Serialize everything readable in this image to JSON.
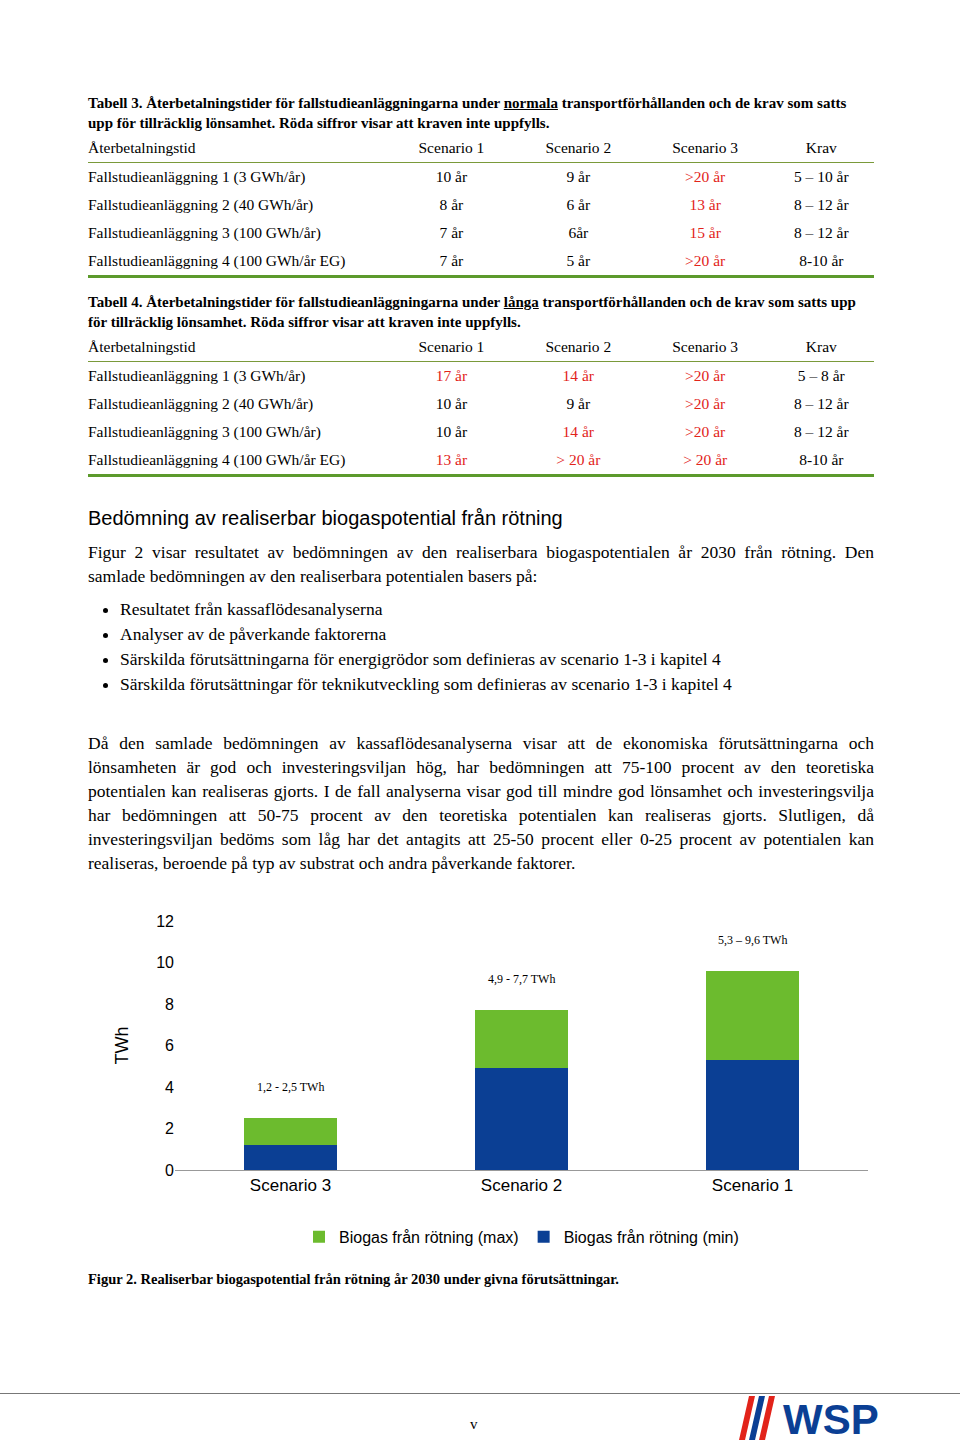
{
  "tables": [
    {
      "caption": [
        {
          "text": "Tabell 3. Återbetalningstider för fallstudieanläggningarna under "
        },
        {
          "text": "normala",
          "underline": true
        },
        {
          "text": " transportförhållanden och de krav som satts upp för tillräcklig lönsamhet. Röda siffror visar att kraven inte uppfylls."
        }
      ],
      "header": [
        "Återbetalningstid",
        "Scenario 1",
        "Scenario 2",
        "Scenario 3",
        "Krav"
      ],
      "rows": [
        [
          "Fallstudieanläggning 1 (3 GWh/år)",
          "10 år",
          "9 år",
          {
            "text": ">20 år",
            "color": "red"
          },
          "5 – 10 år"
        ],
        [
          "Fallstudieanläggning 2 (40 GWh/år)",
          "8 år",
          "6 år",
          {
            "text": "13 år",
            "color": "red"
          },
          "8 – 12 år"
        ],
        [
          "Fallstudieanläggning 3 (100 GWh/år)",
          "7 år",
          "6år",
          {
            "text": "15 år",
            "color": "red"
          },
          "8 – 12 år"
        ],
        [
          "Fallstudieanläggning 4 (100 GWh/år EG)",
          "7 år",
          "5 år",
          {
            "text": ">20 år",
            "color": "red"
          },
          "8-10 år"
        ]
      ]
    },
    {
      "caption": [
        {
          "text": "Tabell 4. Återbetalningstider för fallstudieanläggningarna under "
        },
        {
          "text": "långa",
          "underline": true
        },
        {
          "text": " transportförhållanden och de krav som satts upp för tillräcklig lönsamhet. Röda siffror visar att kraven inte uppfylls."
        }
      ],
      "header": [
        "Återbetalningstid",
        "Scenario 1",
        "Scenario 2",
        "Scenario 3",
        "Krav"
      ],
      "rows": [
        [
          "Fallstudieanläggning 1 (3 GWh/år)",
          {
            "text": "17 år",
            "color": "red"
          },
          {
            "text": "14 år",
            "color": "red"
          },
          {
            "text": ">20 år",
            "color": "red"
          },
          "5 – 8 år"
        ],
        [
          "Fallstudieanläggning 2 (40 GWh/år)",
          "10 år",
          "9 år",
          {
            "text": ">20 år",
            "color": "red"
          },
          "8 – 12 år"
        ],
        [
          "Fallstudieanläggning 3 (100 GWh/år)",
          "10 år",
          {
            "text": "14 år",
            "color": "red"
          },
          {
            "text": ">20 år",
            "color": "red"
          },
          "8 – 12 år"
        ],
        [
          "Fallstudieanläggning 4 (100 GWh/år EG)",
          {
            "text": "13 år",
            "color": "red"
          },
          {
            "text": "> 20 år",
            "color": "red"
          },
          {
            "text": "> 20 år",
            "color": "red"
          },
          "8-10 år"
        ]
      ]
    }
  ],
  "heading": "Bedömning av realiserbar biogaspotential från rötning",
  "paragraph1": "Figur 2 visar resultatet av bedömningen av den realiserbara biogaspotentialen år 2030 från rötning. Den samlade bedömningen av den realiserbara potentialen basers på:",
  "bullets": [
    "Resultatet från kassaflödesanalyserna",
    "Analyser av de påverkande faktorerna",
    "Särskilda förutsättningarna för energigrödor som definieras av scenario 1-3 i kapitel 4",
    "Särskilda förutsättningar för teknikutveckling som definieras av scenario 1-3 i kapitel 4"
  ],
  "paragraph2": "Då den samlade bedömningen av kassaflödesanalyserna visar att de ekonomiska förutsättningarna och lönsamheten är god och investeringsviljan hög, har bedömningen att 75-100 procent av den teoretiska potentialen kan realiseras gjorts. I de fall analyserna visar god till mindre god lönsamhet och investeringsvilja har bedömningen att 50-75 procent av den teoretiska potentialen kan realiseras gjorts. Slutligen, då investeringsviljan bedöms som låg har det antagits att 25-50 procent eller 0-25 procent av potentialen kan realiseras, beroende på typ av substrat och andra påverkande faktorer.",
  "chart_data": {
    "type": "bar",
    "stacked": true,
    "categories": [
      "Scenario 3",
      "Scenario 2",
      "Scenario 1"
    ],
    "series": [
      {
        "name": "Biogas från rötning (min)",
        "color": "#0b3f94",
        "values": [
          1.2,
          4.9,
          5.3
        ]
      },
      {
        "name": "Biogas från rötning (max)",
        "color": "#6cbb2e",
        "values": [
          1.3,
          2.8,
          4.3
        ]
      }
    ],
    "y_label": "TWh",
    "ylim": [
      0,
      12
    ],
    "yticks": [
      0,
      2,
      4,
      6,
      8,
      10,
      12
    ],
    "grid": false,
    "legend": "bottom",
    "annotations": [
      {
        "category": "Scenario 3",
        "text": "1,2 - 2,5 TWh"
      },
      {
        "category": "Scenario 2",
        "text": "4,9 - 7,7 TWh"
      },
      {
        "category": "Scenario 1",
        "text": "5,3 – 9,6 TWh"
      }
    ]
  },
  "figure_caption": "Figur 2. Realiserbar biogaspotential från rötning år 2030 under givna förutsättningar.",
  "page_number": "v",
  "logo": "WSP"
}
